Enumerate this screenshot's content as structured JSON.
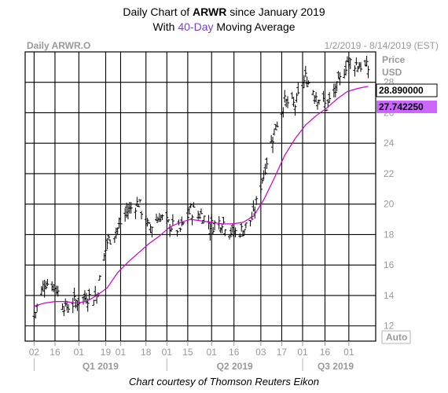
{
  "title": {
    "line1_prefix": "Daily Chart of ",
    "line1_ticker": "ARWR",
    "line1_suffix": " since January 2019",
    "line2_prefix": "With ",
    "line2_highlight": "40-Day",
    "line2_suffix": " Moving Average"
  },
  "header": {
    "symbol": "Daily ARWR.O",
    "date_range": "1/2/2019 - 8/14/2019 (EST)",
    "price_label": "Price",
    "currency": "USD",
    "auto_label": "Auto"
  },
  "credit": "Chart courtesy of Thomson Reuters Eikon",
  "colors": {
    "bars": "#000000",
    "ma_line": "#cc00cc",
    "ma_badge": "#cc66ff",
    "title_highlight": "#7b3fbf",
    "grid": "#000000"
  },
  "chart_data": {
    "type": "line",
    "title": "Daily Chart of ARWR since January 2019",
    "subtitle": "With 40-Day Moving Average",
    "ylabel": "Price USD",
    "ylim": [
      11,
      30
    ],
    "y_ticks": [
      12,
      14,
      16,
      18,
      20,
      22,
      24,
      26,
      28
    ],
    "x_tick_labels": [
      "02",
      "16",
      "01",
      "19",
      "01",
      "18",
      "01",
      "15",
      "01",
      "16",
      "03",
      "17",
      "01",
      "16",
      "01"
    ],
    "quarter_labels": [
      "Q1 2019",
      "Q2 2019",
      "Q3 2019"
    ],
    "grid": true,
    "last_price": "28.890000",
    "last_ma": "27.742250",
    "series": [
      {
        "name": "ARWR.O",
        "kind": "ohlc",
        "x": [
          "2019-01-02",
          "2019-01-09",
          "2019-01-16",
          "2019-01-23",
          "2019-01-30",
          "2019-02-06",
          "2019-02-13",
          "2019-02-20",
          "2019-02-27",
          "2019-03-06",
          "2019-03-13",
          "2019-03-20",
          "2019-03-27",
          "2019-04-03",
          "2019-04-10",
          "2019-04-17",
          "2019-04-24",
          "2019-05-01",
          "2019-05-08",
          "2019-05-15",
          "2019-05-22",
          "2019-05-29",
          "2019-06-05",
          "2019-06-12",
          "2019-06-19",
          "2019-06-26",
          "2019-07-03",
          "2019-07-10",
          "2019-07-17",
          "2019-07-24",
          "2019-07-31",
          "2019-08-07",
          "2019-08-14"
        ],
        "values": [
          12.6,
          14.9,
          14.6,
          13.2,
          13.6,
          13.9,
          14.0,
          17.5,
          18.4,
          19.6,
          20.1,
          18.4,
          19.2,
          18.6,
          18.3,
          19.6,
          19.3,
          18.6,
          18.9,
          18.1,
          18.3,
          19.2,
          22.1,
          24.8,
          26.7,
          26.5,
          28.3,
          27.2,
          26.4,
          27.6,
          29.4,
          29.2,
          28.9
        ]
      },
      {
        "name": "40-Day Moving Average",
        "x": [
          "2019-01-02",
          "2019-01-09",
          "2019-01-16",
          "2019-01-23",
          "2019-01-30",
          "2019-02-06",
          "2019-02-13",
          "2019-02-20",
          "2019-02-27",
          "2019-03-06",
          "2019-03-13",
          "2019-03-20",
          "2019-03-27",
          "2019-04-03",
          "2019-04-10",
          "2019-04-17",
          "2019-04-24",
          "2019-05-01",
          "2019-05-08",
          "2019-05-15",
          "2019-05-22",
          "2019-05-29",
          "2019-06-05",
          "2019-06-12",
          "2019-06-19",
          "2019-06-26",
          "2019-07-03",
          "2019-07-10",
          "2019-07-17",
          "2019-07-24",
          "2019-07-31",
          "2019-08-07",
          "2019-08-14"
        ],
        "values": [
          13.3,
          13.5,
          13.6,
          13.6,
          13.5,
          13.6,
          14.0,
          14.5,
          15.5,
          16.2,
          16.8,
          17.4,
          17.9,
          18.5,
          18.8,
          19.0,
          18.9,
          18.8,
          18.7,
          18.7,
          18.8,
          19.2,
          20.3,
          21.7,
          23.2,
          24.3,
          25.2,
          25.8,
          26.3,
          26.9,
          27.4,
          27.6,
          27.74
        ]
      }
    ]
  }
}
